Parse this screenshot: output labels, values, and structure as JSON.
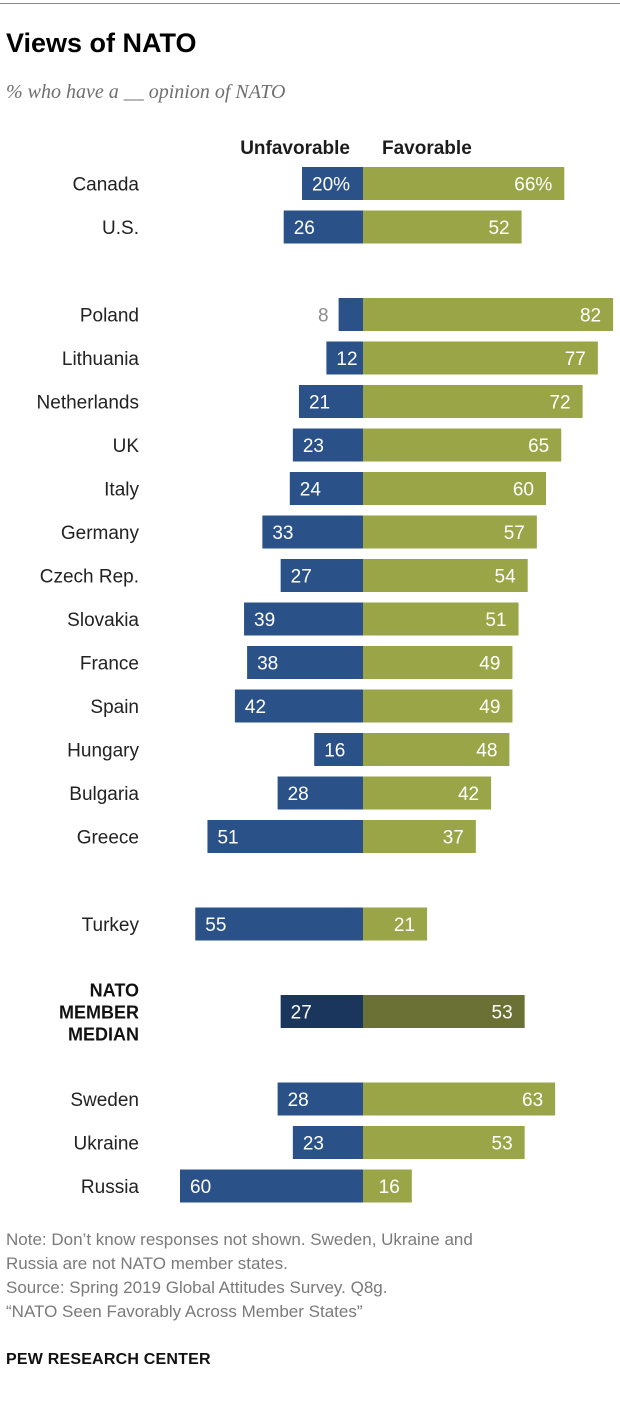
{
  "header": {
    "title": "Views of NATO",
    "subtitle": "% who have a __ opinion of NATO"
  },
  "columns": {
    "unfavorable": "Unfavorable",
    "favorable": "Favorable"
  },
  "colors": {
    "unfavorable": "#2b5189",
    "favorable": "#9aa548",
    "median_unfavorable": "#1b365d",
    "median_favorable": "#6b7034",
    "outside_label": "#8c8c8c"
  },
  "chart_data": {
    "type": "bar",
    "orientation": "horizontal-diverging",
    "series": [
      {
        "name": "Unfavorable",
        "values": [
          20,
          26,
          8,
          12,
          21,
          23,
          24,
          33,
          27,
          39,
          38,
          42,
          16,
          28,
          51,
          55,
          27,
          28,
          23,
          60
        ]
      },
      {
        "name": "Favorable",
        "values": [
          66,
          52,
          82,
          77,
          72,
          65,
          60,
          57,
          54,
          51,
          49,
          49,
          48,
          42,
          37,
          21,
          53,
          63,
          53,
          16
        ]
      }
    ],
    "categories": [
      "Canada",
      "U.S.",
      "Poland",
      "Lithuania",
      "Netherlands",
      "UK",
      "Italy",
      "Germany",
      "Czech Rep.",
      "Slovakia",
      "France",
      "Spain",
      "Hungary",
      "Bulgaria",
      "Greece",
      "Turkey",
      "NATO MEMBER MEDIAN",
      "Sweden",
      "Ukraine",
      "Russia"
    ],
    "groups": [
      [
        "Canada",
        "U.S."
      ],
      [
        "Poland",
        "Lithuania",
        "Netherlands",
        "UK",
        "Italy",
        "Germany",
        "Czech Rep.",
        "Slovakia",
        "France",
        "Spain",
        "Hungary",
        "Bulgaria",
        "Greece"
      ],
      [
        "Turkey"
      ],
      [
        "NATO MEMBER MEDIAN"
      ],
      [
        "Sweden",
        "Ukraine",
        "Russia"
      ]
    ],
    "first_row_suffix": "%",
    "median_row": "NATO MEMBER MEDIAN",
    "median_label_lines": [
      "NATO",
      "MEMBER",
      "MEDIAN"
    ]
  },
  "notes": {
    "line1": "Note: Don’t know responses not shown. Sweden, Ukraine and",
    "line2": "Russia are not NATO member states.",
    "line3": "Source: Spring 2019 Global Attitudes Survey. Q8g.",
    "line4": "“NATO Seen Favorably Across Member States”"
  },
  "footer": {
    "brand": "PEW RESEARCH CENTER"
  }
}
